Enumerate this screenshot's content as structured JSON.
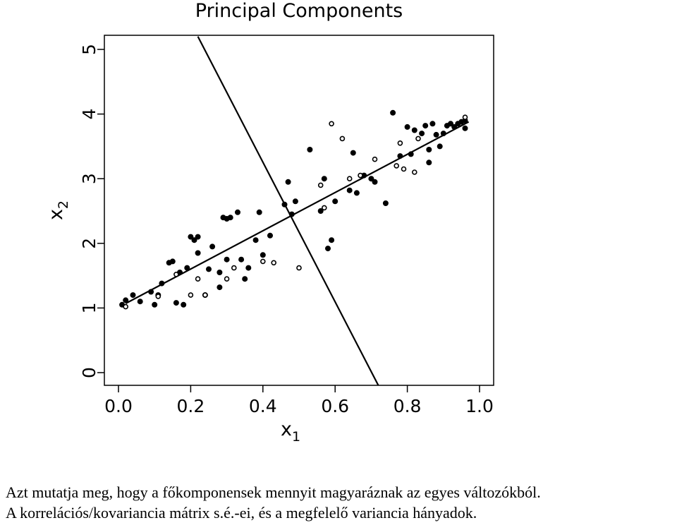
{
  "chart_data": {
    "type": "scatter",
    "title": "Principal Components",
    "xlabel": {
      "base": "x",
      "sub": "1"
    },
    "ylabel": {
      "base": "x",
      "sub": "2"
    },
    "xlim": [
      0.0,
      1.0
    ],
    "ylim": [
      0,
      5
    ],
    "xticks": [
      "0.0",
      "0.2",
      "0.4",
      "0.6",
      "0.8",
      "1.0"
    ],
    "yticks": [
      "0",
      "1",
      "2",
      "3",
      "4",
      "5"
    ],
    "grid": false,
    "lines": [
      {
        "x": [
          0.02,
          0.97
        ],
        "y": [
          1.07,
          3.88
        ]
      },
      {
        "x": [
          0.22,
          0.72
        ],
        "y": [
          5.2,
          -0.2
        ]
      }
    ],
    "series": [
      {
        "marker": "filled",
        "points": [
          [
            0.01,
            1.05
          ],
          [
            0.02,
            1.12
          ],
          [
            0.04,
            1.2
          ],
          [
            0.06,
            1.1
          ],
          [
            0.09,
            1.25
          ],
          [
            0.1,
            1.05
          ],
          [
            0.11,
            1.2
          ],
          [
            0.12,
            1.38
          ],
          [
            0.14,
            1.7
          ],
          [
            0.15,
            1.72
          ],
          [
            0.16,
            1.08
          ],
          [
            0.17,
            1.55
          ],
          [
            0.18,
            1.05
          ],
          [
            0.19,
            1.62
          ],
          [
            0.2,
            2.1
          ],
          [
            0.21,
            2.05
          ],
          [
            0.22,
            2.1
          ],
          [
            0.22,
            1.85
          ],
          [
            0.24,
            1.2
          ],
          [
            0.25,
            1.6
          ],
          [
            0.26,
            1.95
          ],
          [
            0.28,
            1.32
          ],
          [
            0.28,
            1.55
          ],
          [
            0.29,
            2.4
          ],
          [
            0.3,
            2.38
          ],
          [
            0.3,
            1.75
          ],
          [
            0.31,
            2.4
          ],
          [
            0.33,
            2.48
          ],
          [
            0.34,
            1.75
          ],
          [
            0.35,
            1.45
          ],
          [
            0.36,
            1.62
          ],
          [
            0.38,
            2.05
          ],
          [
            0.39,
            2.48
          ],
          [
            0.4,
            1.82
          ],
          [
            0.42,
            2.12
          ],
          [
            0.46,
            2.6
          ],
          [
            0.47,
            2.95
          ],
          [
            0.48,
            2.45
          ],
          [
            0.49,
            2.65
          ],
          [
            0.53,
            3.45
          ],
          [
            0.56,
            2.5
          ],
          [
            0.57,
            3.0
          ],
          [
            0.58,
            1.92
          ],
          [
            0.59,
            2.05
          ],
          [
            0.6,
            2.65
          ],
          [
            0.64,
            2.82
          ],
          [
            0.65,
            3.4
          ],
          [
            0.66,
            2.78
          ],
          [
            0.68,
            3.05
          ],
          [
            0.7,
            3.0
          ],
          [
            0.71,
            2.95
          ],
          [
            0.74,
            2.62
          ],
          [
            0.76,
            4.02
          ],
          [
            0.78,
            3.35
          ],
          [
            0.8,
            3.8
          ],
          [
            0.81,
            3.38
          ],
          [
            0.82,
            3.75
          ],
          [
            0.84,
            3.7
          ],
          [
            0.85,
            3.82
          ],
          [
            0.86,
            3.45
          ],
          [
            0.86,
            3.25
          ],
          [
            0.87,
            3.85
          ],
          [
            0.88,
            3.68
          ],
          [
            0.89,
            3.5
          ],
          [
            0.9,
            3.7
          ],
          [
            0.91,
            3.82
          ],
          [
            0.92,
            3.85
          ],
          [
            0.93,
            3.8
          ],
          [
            0.94,
            3.85
          ],
          [
            0.95,
            3.88
          ],
          [
            0.96,
            3.78
          ],
          [
            0.96,
            3.9
          ]
        ]
      },
      {
        "marker": "open",
        "points": [
          [
            0.02,
            1.02
          ],
          [
            0.11,
            1.18
          ],
          [
            0.16,
            1.52
          ],
          [
            0.2,
            1.2
          ],
          [
            0.22,
            1.45
          ],
          [
            0.24,
            1.2
          ],
          [
            0.3,
            1.45
          ],
          [
            0.32,
            1.62
          ],
          [
            0.4,
            1.72
          ],
          [
            0.43,
            1.7
          ],
          [
            0.5,
            1.62
          ],
          [
            0.56,
            2.9
          ],
          [
            0.57,
            2.55
          ],
          [
            0.59,
            3.85
          ],
          [
            0.62,
            3.62
          ],
          [
            0.64,
            3.0
          ],
          [
            0.67,
            3.05
          ],
          [
            0.71,
            3.3
          ],
          [
            0.77,
            3.2
          ],
          [
            0.78,
            3.55
          ],
          [
            0.79,
            3.15
          ],
          [
            0.82,
            3.1
          ],
          [
            0.83,
            3.62
          ],
          [
            0.96,
            3.95
          ]
        ]
      }
    ]
  },
  "caption": {
    "line1": "Azt mutatja meg, hogy a főkomponensek mennyit magyaráznak az egyes változókból.",
    "line2": "A korrelációs/kovariancia  mátrix s.é.-ei, és a megfelelő variancia hányadok."
  }
}
